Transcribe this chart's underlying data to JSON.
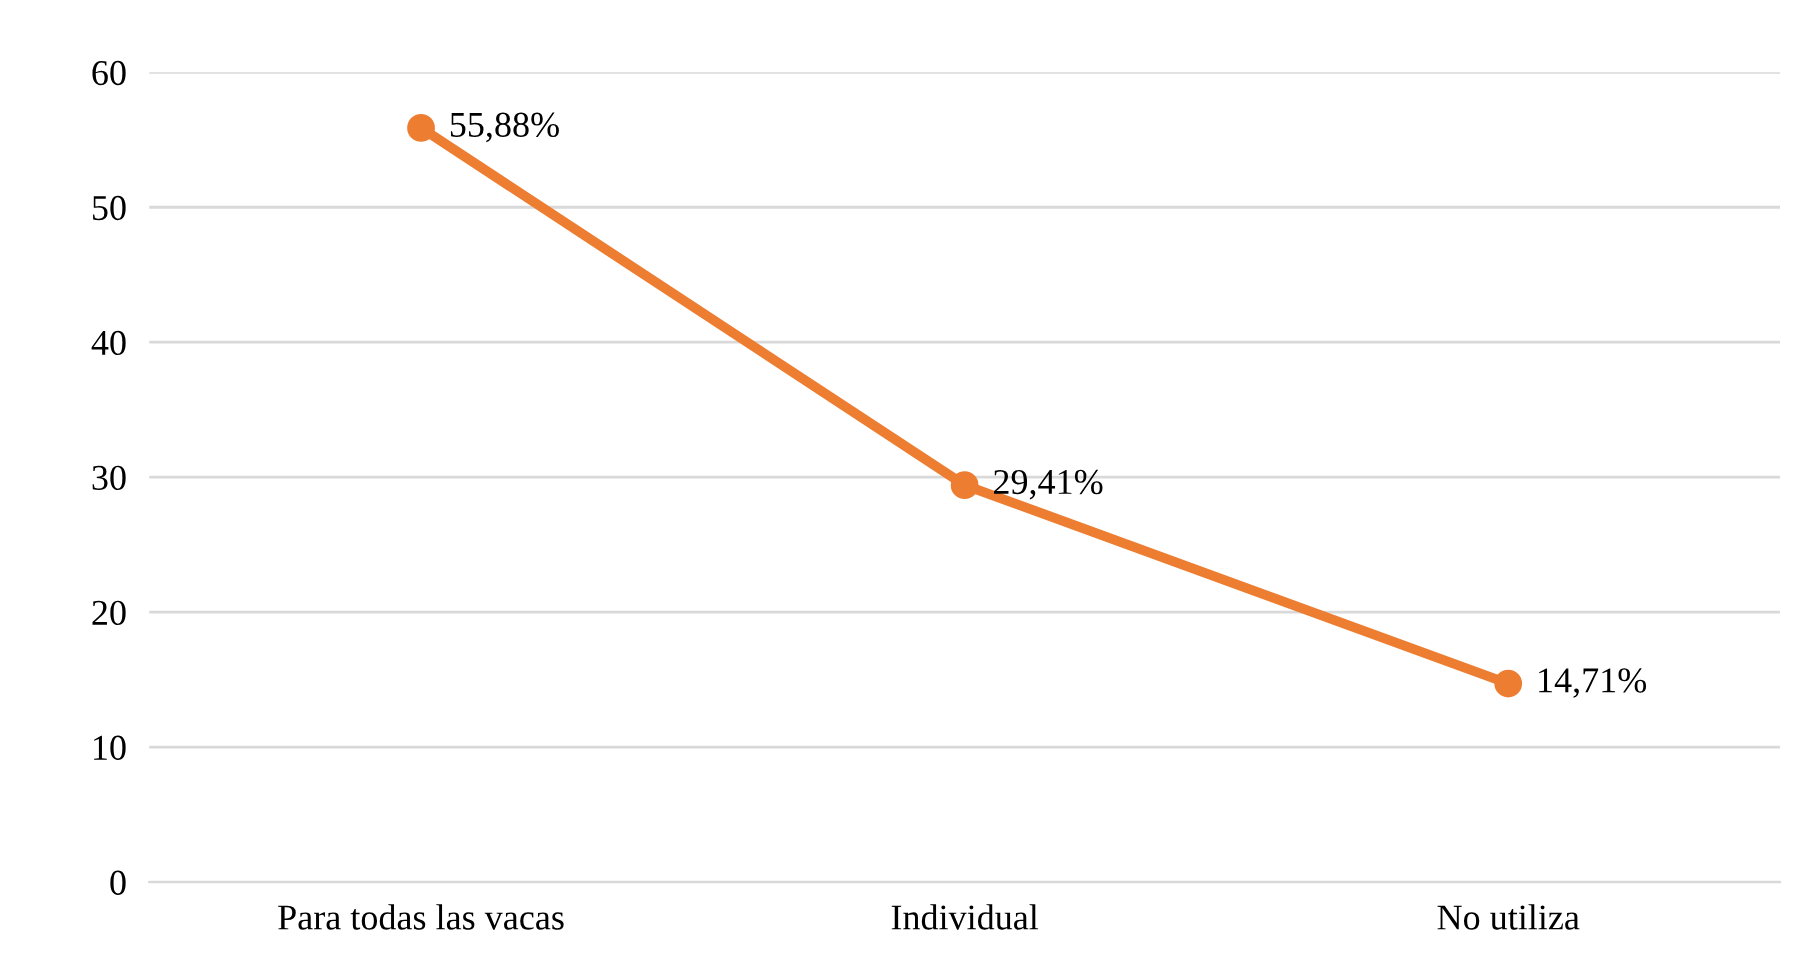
{
  "chart_data": {
    "type": "line",
    "categories": [
      "Para todas las vacas",
      "Individual",
      "No utiliza"
    ],
    "series": [
      {
        "color": "#ed7d31",
        "values": [
          55.88,
          29.41,
          14.71
        ],
        "value_labels": [
          "55,88%",
          "29,41%",
          "14,71%"
        ]
      }
    ],
    "ylim": [
      0,
      60
    ],
    "yticks": [
      0,
      10,
      20,
      30,
      40,
      50,
      60
    ],
    "grid": "y",
    "marker": "circle",
    "line_style": "solid"
  }
}
